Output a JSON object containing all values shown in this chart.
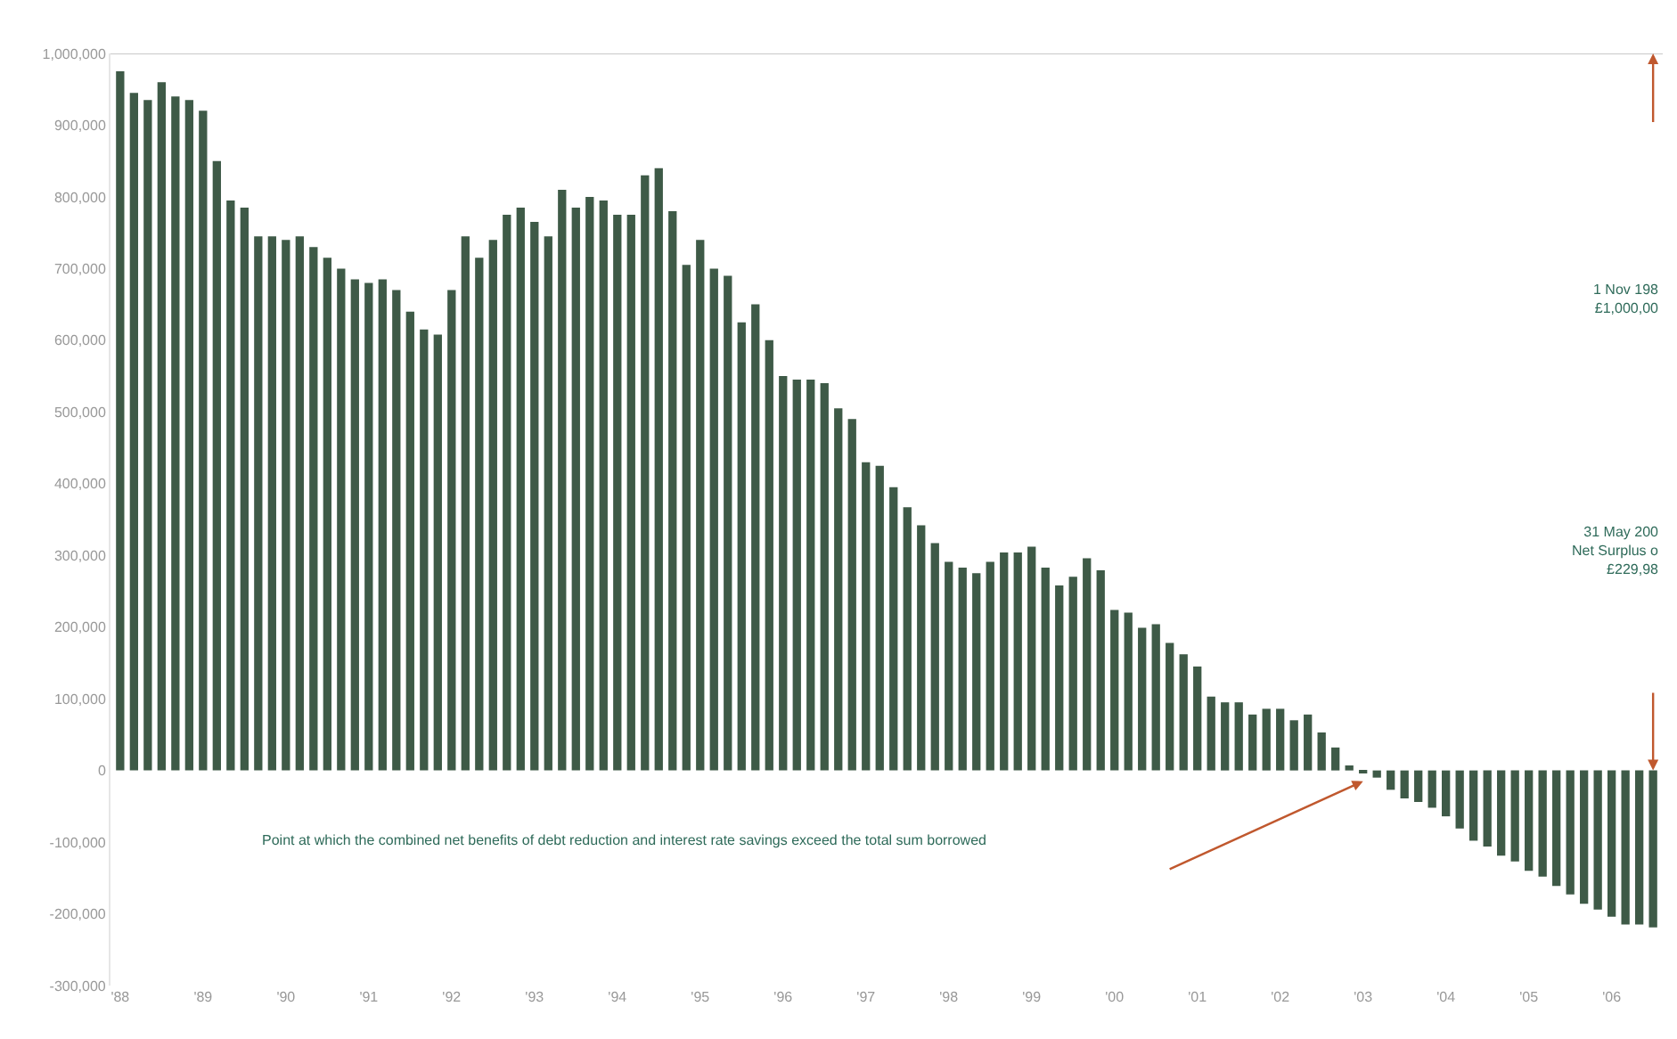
{
  "chart_data": {
    "type": "bar",
    "categories": [
      "'88",
      null,
      null,
      null,
      null,
      null,
      "'89",
      null,
      null,
      null,
      null,
      null,
      "'90",
      null,
      null,
      null,
      null,
      null,
      "'91",
      null,
      null,
      null,
      null,
      null,
      "'92",
      null,
      null,
      null,
      null,
      null,
      "'93",
      null,
      null,
      null,
      null,
      null,
      "'94",
      null,
      null,
      null,
      null,
      null,
      "'95",
      null,
      null,
      null,
      null,
      null,
      "'96",
      null,
      null,
      null,
      null,
      null,
      "'97",
      null,
      null,
      null,
      null,
      null,
      "'98",
      null,
      null,
      null,
      null,
      null,
      "'99",
      null,
      null,
      null,
      null,
      null,
      "'00",
      null,
      null,
      null,
      null,
      null,
      "'01",
      null,
      null,
      null,
      null,
      null,
      "'02",
      null,
      null,
      null,
      null,
      null,
      "'03",
      null,
      null,
      null,
      null,
      null,
      "'04",
      null,
      null,
      null,
      null,
      null,
      "'05",
      null,
      null,
      null,
      null,
      null,
      "'06",
      null,
      null,
      null
    ],
    "values": [
      975000,
      945000,
      935000,
      960000,
      940000,
      935000,
      920000,
      850000,
      795000,
      785000,
      745000,
      745000,
      740000,
      745000,
      730000,
      715000,
      700000,
      685000,
      680000,
      685000,
      670000,
      640000,
      615000,
      608000,
      670000,
      745000,
      715000,
      740000,
      775000,
      785000,
      765000,
      745000,
      810000,
      785000,
      800000,
      795000,
      775000,
      775000,
      830000,
      840000,
      780000,
      705000,
      740000,
      700000,
      690000,
      625000,
      650000,
      600000,
      550000,
      545000,
      545000,
      540000,
      505000,
      490000,
      430000,
      425000,
      395000,
      367000,
      342000,
      317000,
      291000,
      283000,
      275000,
      291000,
      304000,
      304000,
      312000,
      283000,
      258000,
      270000,
      296000,
      279000,
      224000,
      220000,
      199000,
      204000,
      178000,
      162000,
      145000,
      103000,
      95000,
      95000,
      78000,
      86000,
      86000,
      70000,
      78000,
      53000,
      32000,
      7000,
      -2000,
      -10000,
      -27000,
      -39000,
      -44000,
      -52000,
      -64000,
      -81000,
      -98000,
      -106000,
      -119000,
      -127000,
      -140000,
      -148000,
      -161000,
      -173000,
      -186000,
      -194000,
      -204000,
      -215000,
      -215000,
      -219000
    ],
    "color": "#3e5a47",
    "ylim": [
      -300000,
      1000000
    ],
    "yticks": [
      {
        "value": -300000,
        "label": "-300,000"
      },
      {
        "value": -200000,
        "label": "-200,000"
      },
      {
        "value": -100000,
        "label": "-100,000"
      },
      0,
      {
        "value": 100000,
        "label": "100,000"
      },
      {
        "value": 200000,
        "label": "200,000"
      },
      {
        "value": 300000,
        "label": "300,000"
      },
      {
        "value": 400000,
        "label": "400,000"
      },
      {
        "value": 500000,
        "label": "500,000"
      },
      {
        "value": 600000,
        "label": "600,000"
      },
      {
        "value": 700000,
        "label": "700,000"
      },
      {
        "value": 800000,
        "label": "800,000"
      },
      {
        "value": 900000,
        "label": "900,000"
      },
      {
        "value": 1000000,
        "label": "1,000,000"
      }
    ],
    "ref_lines": [
      {
        "axis": "y",
        "value": 1000000,
        "color": "#c8c8c8"
      }
    ],
    "annotations": [
      "1 Nov 198\n£1,000,00",
      "31 May 200\nNet Surplus o\n£229,98",
      "Point at which the combined net benefits of debt reduction and interest rate savings exceed the total sum borrowed"
    ]
  }
}
